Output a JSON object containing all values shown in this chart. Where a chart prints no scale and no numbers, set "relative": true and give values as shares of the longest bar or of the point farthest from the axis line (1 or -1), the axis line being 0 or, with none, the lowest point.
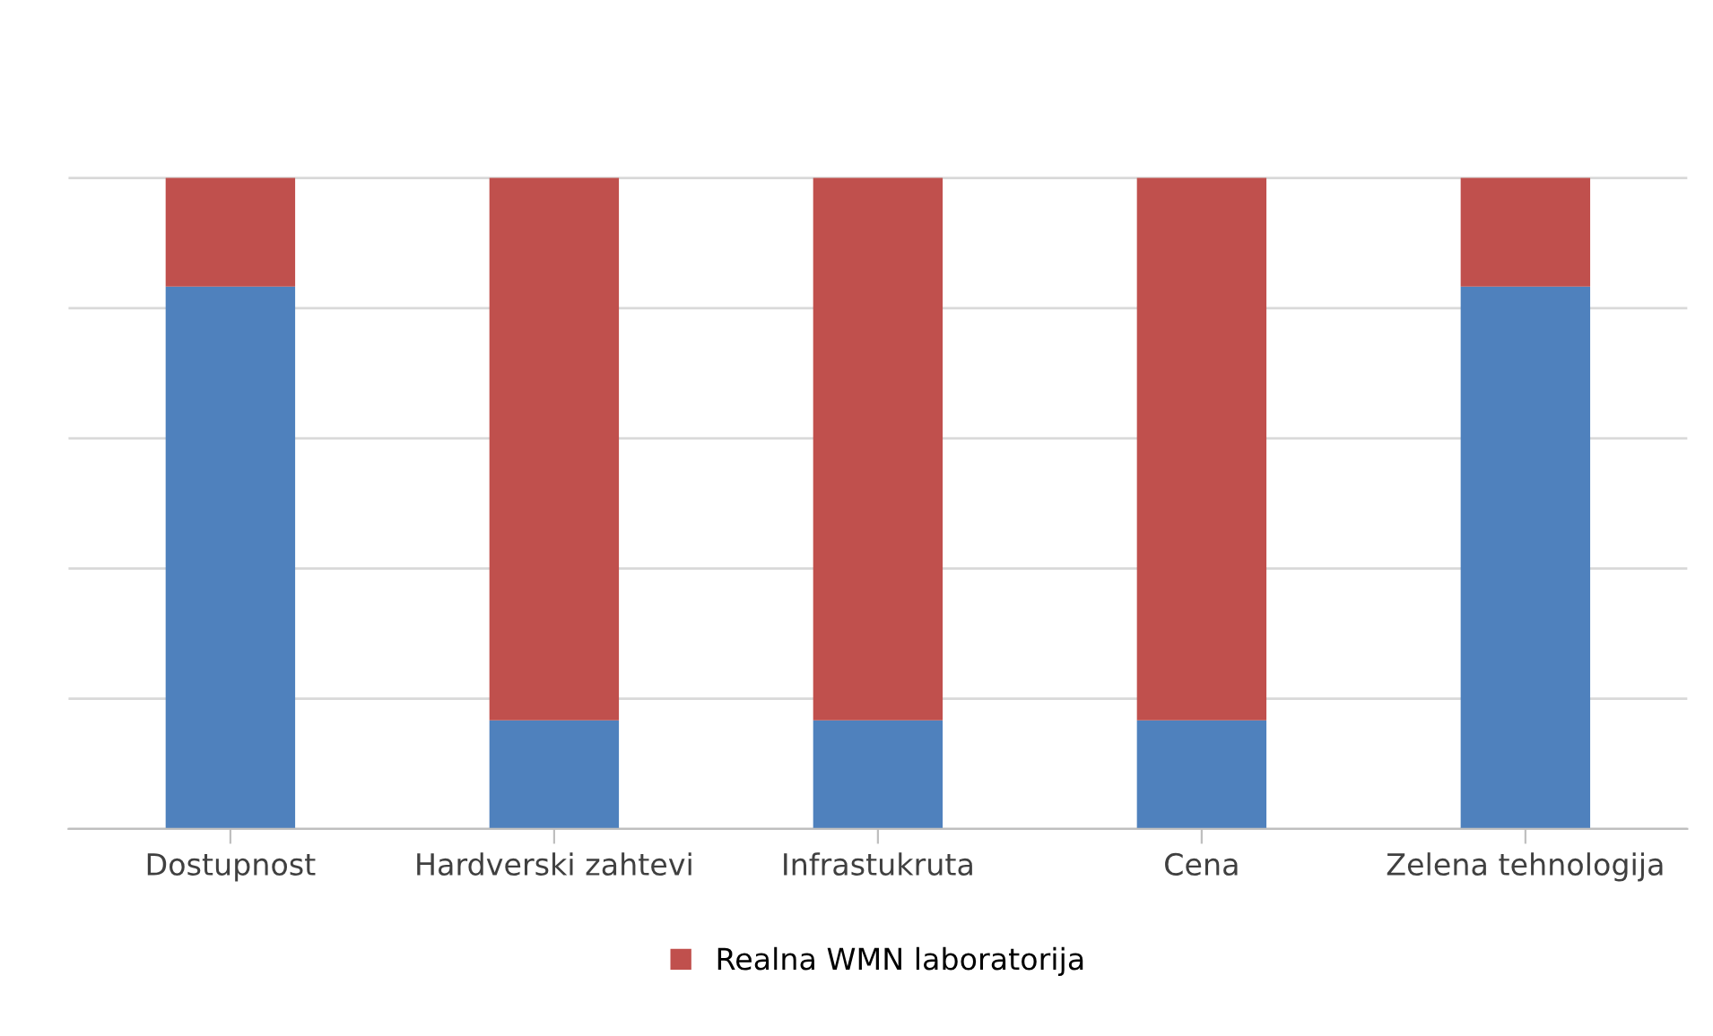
{
  "chart_data": {
    "type": "bar",
    "stacked": true,
    "relative": true,
    "grid": "y",
    "legend": "bottom",
    "categories": [
      "Dostupnost",
      "Hardverski zahtevi",
      "Infrastukruta",
      "Cena",
      "Zelena tehnologija"
    ],
    "series": [
      {
        "color": "#4f81bd",
        "values": [
          0.8333,
          0.1667,
          0.1667,
          0.1667,
          0.8333
        ]
      },
      {
        "name": "Realna WMN laboratorija",
        "color": "#c0504d",
        "values": [
          0.1667,
          0.8333,
          0.8333,
          0.8333,
          0.1667
        ]
      }
    ]
  }
}
